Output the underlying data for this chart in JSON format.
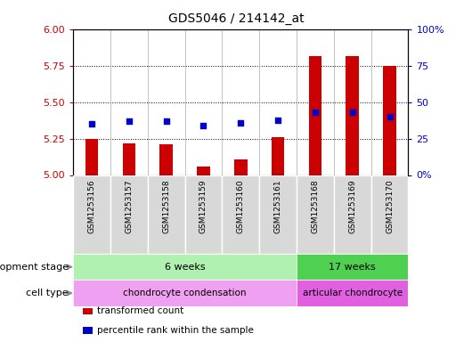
{
  "title": "GDS5046 / 214142_at",
  "samples": [
    "GSM1253156",
    "GSM1253157",
    "GSM1253158",
    "GSM1253159",
    "GSM1253160",
    "GSM1253161",
    "GSM1253168",
    "GSM1253169",
    "GSM1253170"
  ],
  "transformed_count": [
    5.25,
    5.22,
    5.21,
    5.06,
    5.11,
    5.26,
    5.82,
    5.82,
    5.75
  ],
  "percentile_rank": [
    35,
    37,
    37,
    34,
    36,
    38,
    43,
    43,
    40
  ],
  "ylim_left": [
    5.0,
    6.0
  ],
  "ylim_right": [
    0,
    100
  ],
  "yticks_left": [
    5.0,
    5.25,
    5.5,
    5.75,
    6.0
  ],
  "yticks_right": [
    0,
    25,
    50,
    75,
    100
  ],
  "ytick_labels_right": [
    "0%",
    "25",
    "50",
    "75",
    "100%"
  ],
  "bar_color": "#cc0000",
  "dot_color": "#0000cc",
  "bar_base": 5.0,
  "development_stage_groups": [
    {
      "label": "6 weeks",
      "start": 0,
      "end": 6,
      "color": "#b0f0b0"
    },
    {
      "label": "17 weeks",
      "start": 6,
      "end": 9,
      "color": "#50d050"
    }
  ],
  "cell_type_groups": [
    {
      "label": "chondrocyte condensation",
      "start": 0,
      "end": 6,
      "color": "#f0a0f0"
    },
    {
      "label": "articular chondrocyte",
      "start": 6,
      "end": 9,
      "color": "#e060e0"
    }
  ],
  "row_label_dev": "development stage",
  "row_label_cell": "cell type",
  "legend_items": [
    {
      "color": "#cc0000",
      "label": "transformed count"
    },
    {
      "color": "#0000cc",
      "label": "percentile rank within the sample"
    }
  ],
  "dot_size": 18,
  "bar_width": 0.35,
  "tick_label_color_left": "#cc0000",
  "tick_label_color_right": "#0000cc",
  "sample_box_color": "#d8d8d8",
  "vline_color": "#aaaaaa",
  "grid_dotted_color": "#000000",
  "fig_bg": "#ffffff"
}
